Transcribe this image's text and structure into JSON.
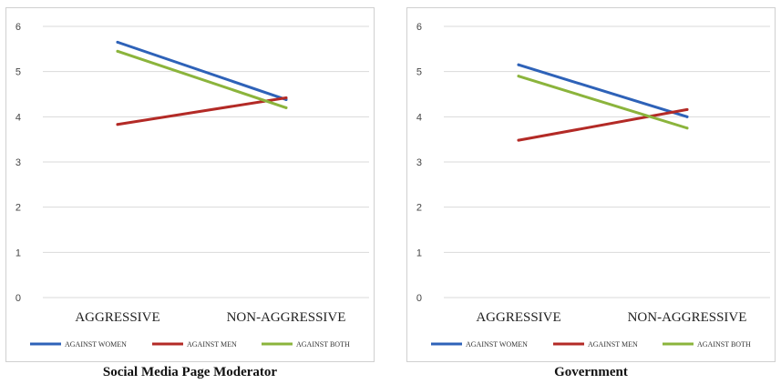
{
  "chart_data": [
    {
      "type": "line",
      "title": "Social Media Page Moderator",
      "categories": [
        "AGGRESSIVE",
        "NON-AGGRESSIVE"
      ],
      "yticks": [
        "0",
        "1",
        "2",
        "3",
        "4",
        "5",
        "6"
      ],
      "ylim": [
        0,
        6
      ],
      "grid": true,
      "legend_position": "bottom",
      "series": [
        {
          "name": "AGAINST WOMEN",
          "color": "#2e62b8",
          "values": [
            5.65,
            4.38
          ]
        },
        {
          "name": "AGAINST MEN",
          "color": "#b32a26",
          "values": [
            3.83,
            4.42
          ]
        },
        {
          "name": "AGAINST BOTH",
          "color": "#8bb43c",
          "values": [
            5.45,
            4.2
          ]
        }
      ]
    },
    {
      "type": "line",
      "title": "Government",
      "categories": [
        "AGGRESSIVE",
        "NON-AGGRESSIVE"
      ],
      "yticks": [
        "0",
        "1",
        "2",
        "3",
        "4",
        "5",
        "6"
      ],
      "ylim": [
        0,
        6
      ],
      "grid": true,
      "legend_position": "bottom",
      "series": [
        {
          "name": "AGAINST WOMEN",
          "color": "#2e62b8",
          "values": [
            5.15,
            4.0
          ]
        },
        {
          "name": "AGAINST MEN",
          "color": "#b32a26",
          "values": [
            3.48,
            4.16
          ]
        },
        {
          "name": "AGAINST BOTH",
          "color": "#8bb43c",
          "values": [
            4.9,
            3.75
          ]
        }
      ]
    }
  ]
}
